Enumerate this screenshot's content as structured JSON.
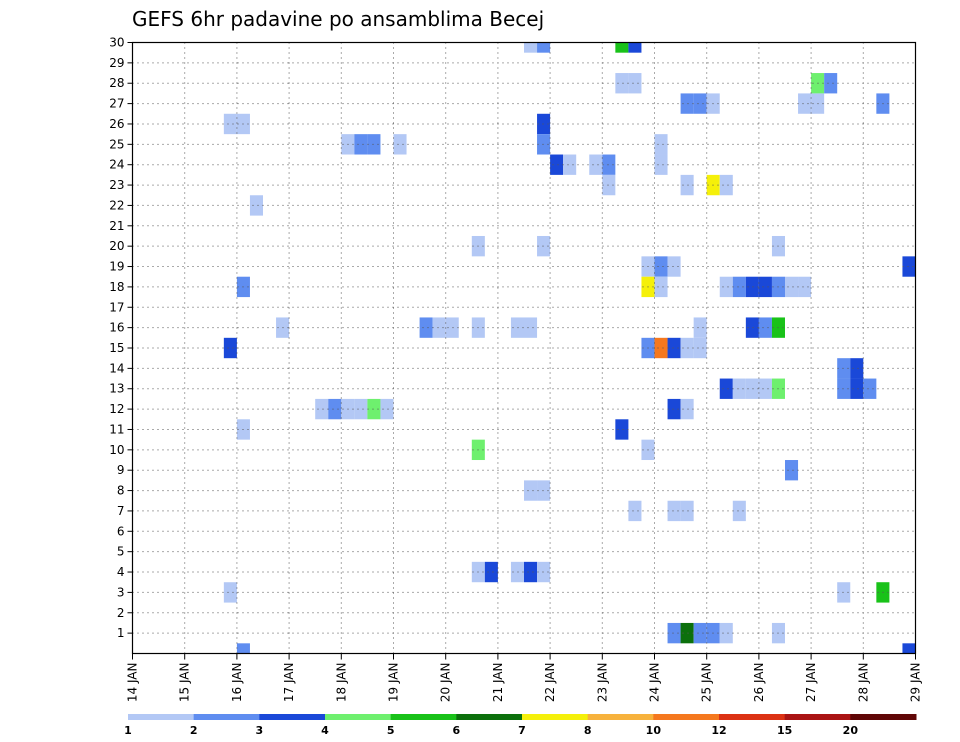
{
  "chart_data": {
    "type": "heatmap",
    "title": "GEFS 6hr padavine po ansamblima Becej",
    "xlabel": "",
    "ylabel": "",
    "x_ticks": [
      "14 JAN",
      "15 JAN",
      "16 JAN",
      "17 JAN",
      "18 JAN",
      "19 JAN",
      "20 JAN",
      "21 JAN",
      "22 JAN",
      "23 JAN",
      "24 JAN",
      "25 JAN",
      "26 JAN",
      "27 JAN",
      "28 JAN",
      "29 JAN"
    ],
    "y_ticks": [
      "1",
      "2",
      "3",
      "4",
      "5",
      "6",
      "7",
      "8",
      "9",
      "10",
      "11",
      "12",
      "13",
      "14",
      "15",
      "16",
      "17",
      "18",
      "19",
      "20",
      "21",
      "22",
      "23",
      "24",
      "25",
      "26",
      "27",
      "28",
      "29",
      "30"
    ],
    "xlim": [
      0,
      60
    ],
    "ylim": [
      0,
      30
    ],
    "x_unit": "6-hour steps from 14 JAN 00Z",
    "grid": true,
    "colorbar": {
      "labels": [
        "1",
        "2",
        "3",
        "4",
        "5",
        "6",
        "7",
        "8",
        "10",
        "12",
        "15",
        "20"
      ],
      "colors": [
        "#b3c8f5",
        "#5f8df0",
        "#1a48d8",
        "#6ef06e",
        "#19c219",
        "#0c700c",
        "#f5f00a",
        "#f7b23c",
        "#f5781e",
        "#dc3214",
        "#aa1414",
        "#600606"
      ]
    },
    "cells": [
      {
        "x": 30.5,
        "y": 30,
        "c": 1
      },
      {
        "x": 31.5,
        "y": 30,
        "c": 2
      },
      {
        "x": 37.5,
        "y": 30,
        "c": 5
      },
      {
        "x": 38.5,
        "y": 30,
        "c": 3
      },
      {
        "x": 37.5,
        "y": 28,
        "c": 1
      },
      {
        "x": 38.5,
        "y": 28,
        "c": 1
      },
      {
        "x": 52.5,
        "y": 28,
        "c": 4
      },
      {
        "x": 53.5,
        "y": 28,
        "c": 2
      },
      {
        "x": 42.5,
        "y": 27,
        "c": 2
      },
      {
        "x": 43.5,
        "y": 27,
        "c": 2
      },
      {
        "x": 44.5,
        "y": 27,
        "c": 1
      },
      {
        "x": 51.5,
        "y": 27,
        "c": 1
      },
      {
        "x": 52.5,
        "y": 27,
        "c": 1
      },
      {
        "x": 57.5,
        "y": 27,
        "c": 2
      },
      {
        "x": 7.5,
        "y": 26,
        "c": 1
      },
      {
        "x": 8.5,
        "y": 26,
        "c": 1
      },
      {
        "x": 31.5,
        "y": 26,
        "c": 3
      },
      {
        "x": 16.5,
        "y": 25,
        "c": 1
      },
      {
        "x": 17.5,
        "y": 25,
        "c": 2
      },
      {
        "x": 18.5,
        "y": 25,
        "c": 2
      },
      {
        "x": 20.5,
        "y": 25,
        "c": 1
      },
      {
        "x": 31.5,
        "y": 25,
        "c": 2
      },
      {
        "x": 40.5,
        "y": 25,
        "c": 1
      },
      {
        "x": 32.5,
        "y": 24,
        "c": 3
      },
      {
        "x": 33.5,
        "y": 24,
        "c": 1
      },
      {
        "x": 35.5,
        "y": 24,
        "c": 1
      },
      {
        "x": 36.5,
        "y": 24,
        "c": 2
      },
      {
        "x": 40.5,
        "y": 24,
        "c": 1
      },
      {
        "x": 36.5,
        "y": 23,
        "c": 1
      },
      {
        "x": 42.5,
        "y": 23,
        "c": 1
      },
      {
        "x": 44.5,
        "y": 23,
        "c": 7
      },
      {
        "x": 45.5,
        "y": 23,
        "c": 1
      },
      {
        "x": 9.5,
        "y": 22,
        "c": 1
      },
      {
        "x": 26.5,
        "y": 20,
        "c": 1
      },
      {
        "x": 31.5,
        "y": 20,
        "c": 1
      },
      {
        "x": 49.5,
        "y": 20,
        "c": 1
      },
      {
        "x": 39.5,
        "y": 19,
        "c": 1
      },
      {
        "x": 40.5,
        "y": 19,
        "c": 2
      },
      {
        "x": 41.5,
        "y": 19,
        "c": 1
      },
      {
        "x": 59.5,
        "y": 19,
        "c": 3
      },
      {
        "x": 8.5,
        "y": 18,
        "c": 2
      },
      {
        "x": 39.5,
        "y": 18,
        "c": 7
      },
      {
        "x": 40.5,
        "y": 18,
        "c": 1
      },
      {
        "x": 45.5,
        "y": 18,
        "c": 1
      },
      {
        "x": 46.5,
        "y": 18,
        "c": 2
      },
      {
        "x": 47.5,
        "y": 18,
        "c": 3
      },
      {
        "x": 48.5,
        "y": 18,
        "c": 3
      },
      {
        "x": 49.5,
        "y": 18,
        "c": 2
      },
      {
        "x": 50.5,
        "y": 18,
        "c": 1
      },
      {
        "x": 51.5,
        "y": 18,
        "c": 1
      },
      {
        "x": 11.5,
        "y": 16,
        "c": 1
      },
      {
        "x": 22.5,
        "y": 16,
        "c": 2
      },
      {
        "x": 23.5,
        "y": 16,
        "c": 1
      },
      {
        "x": 24.5,
        "y": 16,
        "c": 1
      },
      {
        "x": 26.5,
        "y": 16,
        "c": 1
      },
      {
        "x": 29.5,
        "y": 16,
        "c": 1
      },
      {
        "x": 30.5,
        "y": 16,
        "c": 1
      },
      {
        "x": 43.5,
        "y": 16,
        "c": 1
      },
      {
        "x": 47.5,
        "y": 16,
        "c": 3
      },
      {
        "x": 48.5,
        "y": 16,
        "c": 2
      },
      {
        "x": 49.5,
        "y": 16,
        "c": 5
      },
      {
        "x": 7.5,
        "y": 15,
        "c": 3
      },
      {
        "x": 39.5,
        "y": 15,
        "c": 2
      },
      {
        "x": 40.5,
        "y": 15,
        "c": 9
      },
      {
        "x": 41.5,
        "y": 15,
        "c": 3
      },
      {
        "x": 42.5,
        "y": 15,
        "c": 1
      },
      {
        "x": 43.5,
        "y": 15,
        "c": 1
      },
      {
        "x": 54.5,
        "y": 14,
        "c": 2
      },
      {
        "x": 55.5,
        "y": 14,
        "c": 3
      },
      {
        "x": 45.5,
        "y": 13,
        "c": 3
      },
      {
        "x": 46.5,
        "y": 13,
        "c": 1
      },
      {
        "x": 47.5,
        "y": 13,
        "c": 1
      },
      {
        "x": 48.5,
        "y": 13,
        "c": 1
      },
      {
        "x": 49.5,
        "y": 13,
        "c": 4
      },
      {
        "x": 54.5,
        "y": 13,
        "c": 2
      },
      {
        "x": 55.5,
        "y": 13,
        "c": 3
      },
      {
        "x": 56.5,
        "y": 13,
        "c": 2
      },
      {
        "x": 14.5,
        "y": 12,
        "c": 1
      },
      {
        "x": 15.5,
        "y": 12,
        "c": 2
      },
      {
        "x": 16.5,
        "y": 12,
        "c": 1
      },
      {
        "x": 17.5,
        "y": 12,
        "c": 1
      },
      {
        "x": 18.5,
        "y": 12,
        "c": 4
      },
      {
        "x": 19.5,
        "y": 12,
        "c": 1
      },
      {
        "x": 41.5,
        "y": 12,
        "c": 3
      },
      {
        "x": 42.5,
        "y": 12,
        "c": 1
      },
      {
        "x": 8.5,
        "y": 11,
        "c": 1
      },
      {
        "x": 37.5,
        "y": 11,
        "c": 3
      },
      {
        "x": 26.5,
        "y": 10,
        "c": 4
      },
      {
        "x": 39.5,
        "y": 10,
        "c": 1
      },
      {
        "x": 50.5,
        "y": 9,
        "c": 2
      },
      {
        "x": 30.5,
        "y": 8,
        "c": 1
      },
      {
        "x": 31.5,
        "y": 8,
        "c": 1
      },
      {
        "x": 38.5,
        "y": 7,
        "c": 1
      },
      {
        "x": 41.5,
        "y": 7,
        "c": 1
      },
      {
        "x": 42.5,
        "y": 7,
        "c": 1
      },
      {
        "x": 46.5,
        "y": 7,
        "c": 1
      },
      {
        "x": 26.5,
        "y": 4,
        "c": 1
      },
      {
        "x": 27.5,
        "y": 4,
        "c": 3
      },
      {
        "x": 29.5,
        "y": 4,
        "c": 1
      },
      {
        "x": 30.5,
        "y": 4,
        "c": 3
      },
      {
        "x": 31.5,
        "y": 4,
        "c": 1
      },
      {
        "x": 7.5,
        "y": 3,
        "c": 1
      },
      {
        "x": 54.5,
        "y": 3,
        "c": 1
      },
      {
        "x": 57.5,
        "y": 3,
        "c": 5
      },
      {
        "x": 41.5,
        "y": 1,
        "c": 2
      },
      {
        "x": 42.5,
        "y": 1,
        "c": 6
      },
      {
        "x": 43.5,
        "y": 1,
        "c": 2
      },
      {
        "x": 44.5,
        "y": 1,
        "c": 2
      },
      {
        "x": 45.5,
        "y": 1,
        "c": 1
      },
      {
        "x": 49.5,
        "y": 1,
        "c": 1
      },
      {
        "x": 8.5,
        "y": 0,
        "c": 2
      },
      {
        "x": 59.5,
        "y": 0,
        "c": 3
      }
    ]
  }
}
